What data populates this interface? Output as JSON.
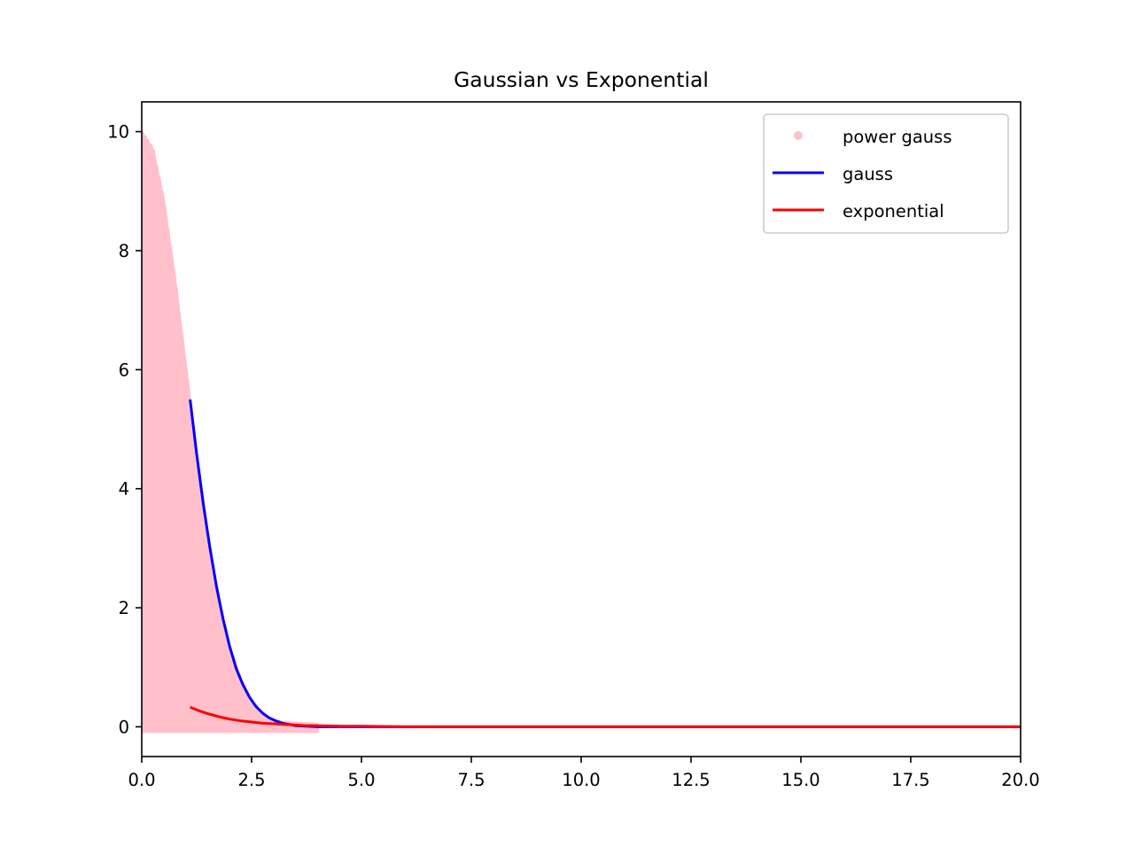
{
  "chart_data": {
    "type": "line",
    "title": "Gaussian vs Exponential",
    "xlabel": "",
    "ylabel": "",
    "xlim": [
      0,
      20
    ],
    "ylim": [
      -0.5,
      10.5
    ],
    "x_ticks": [
      "0.0",
      "2.5",
      "5.0",
      "7.5",
      "10.0",
      "12.5",
      "15.0",
      "17.5",
      "20.0"
    ],
    "y_ticks": [
      "0",
      "2",
      "4",
      "6",
      "8",
      "10"
    ],
    "grid": false,
    "legend_position": "top-right",
    "series": [
      {
        "name": "power gauss",
        "kind": "scatter",
        "color": "#ffc0cb",
        "note": "dense noisy points between about -0.08 and 10*exp(-x^2/2), x from 0 to about 4",
        "x": [
          0.0,
          0.25,
          0.5,
          0.75,
          1.0,
          1.25,
          1.5,
          1.75,
          2.0,
          2.25,
          2.5,
          2.75,
          3.0,
          3.25,
          3.5,
          3.75,
          4.0
        ],
        "y_upper": [
          10.0,
          9.72,
          8.85,
          7.55,
          6.07,
          4.58,
          3.25,
          2.16,
          1.35,
          0.8,
          0.44,
          0.23,
          0.11,
          0.08,
          0.07,
          0.06,
          0.05
        ],
        "y_lower": [
          -0.08,
          -0.08,
          -0.08,
          -0.08,
          -0.08,
          -0.08,
          -0.08,
          -0.08,
          -0.08,
          -0.08,
          -0.08,
          -0.08,
          -0.08,
          -0.08,
          -0.08,
          -0.08,
          -0.08
        ]
      },
      {
        "name": "gauss",
        "kind": "line",
        "color": "#0000ff",
        "x": [
          1.1,
          1.25,
          1.4,
          1.55,
          1.7,
          1.85,
          2.0,
          2.15,
          2.3,
          2.45,
          2.6,
          2.75,
          2.9,
          3.05,
          3.2,
          3.35,
          3.5,
          3.75,
          4.0,
          4.5,
          5.0,
          6.0,
          8.0,
          10.0,
          15.0,
          20.0
        ],
        "y": [
          5.5,
          4.58,
          3.75,
          3.01,
          2.36,
          1.81,
          1.35,
          0.98,
          0.71,
          0.5,
          0.34,
          0.23,
          0.15,
          0.1,
          0.06,
          0.04,
          0.02,
          0.01,
          0.0,
          0.0,
          0.0,
          0.0,
          0.0,
          0.0,
          0.0,
          0.0
        ]
      },
      {
        "name": "exponential",
        "kind": "line",
        "color": "#ff0000",
        "x": [
          1.1,
          1.3,
          1.5,
          1.75,
          2.0,
          2.25,
          2.5,
          2.75,
          3.0,
          3.25,
          3.5,
          3.75,
          4.0,
          4.5,
          5.0,
          6.0,
          7.0,
          8.0,
          10.0,
          12.5,
          15.0,
          17.5,
          20.0
        ],
        "y": [
          0.33,
          0.27,
          0.22,
          0.17,
          0.13,
          0.1,
          0.08,
          0.06,
          0.05,
          0.04,
          0.03,
          0.02,
          0.02,
          0.01,
          0.01,
          0.0,
          0.0,
          0.0,
          0.0,
          0.0,
          0.0,
          0.0,
          0.0
        ]
      }
    ]
  }
}
